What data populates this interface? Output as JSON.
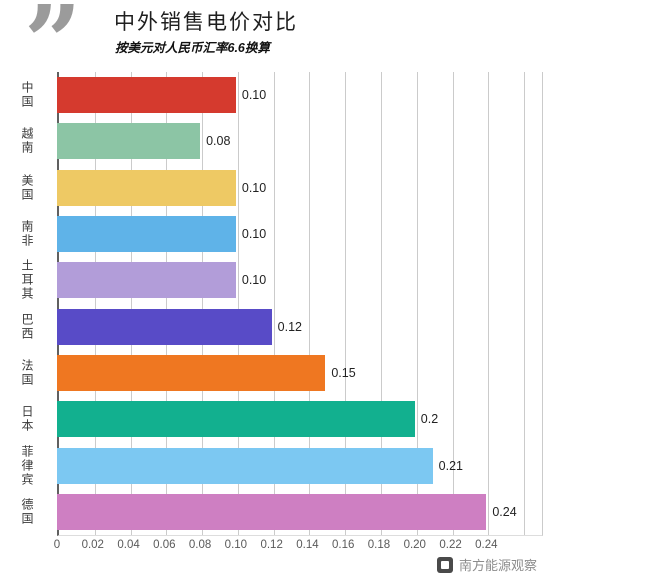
{
  "header": {
    "quote_glyph": "”",
    "title": "中外销售电价对比",
    "subtitle": "按美元对人民币汇率6.6换算"
  },
  "chart_data": {
    "type": "bar",
    "orientation": "horizontal",
    "title": "中外销售电价对比",
    "subtitle": "按美元对人民币汇率6.6换算",
    "categories": [
      "中国",
      "越南",
      "美国",
      "南非",
      "土耳其",
      "巴西",
      "法国",
      "日本",
      "菲律宾",
      "德国"
    ],
    "values": [
      0.1,
      0.08,
      0.1,
      0.1,
      0.1,
      0.12,
      0.15,
      0.2,
      0.21,
      0.24
    ],
    "value_labels": [
      "0.10",
      "0.08",
      "0.10",
      "0.10",
      "0.10",
      "0.12",
      "0.15",
      "0.2",
      "0.21",
      "0.24"
    ],
    "bar_colors": [
      "#d53a2e",
      "#8cc5a5",
      "#eec964",
      "#5fb3e8",
      "#b29dd9",
      "#584bc7",
      "#ef7721",
      "#12b08f",
      "#7cc8f2",
      "#ce7fc2"
    ],
    "xlabel": "",
    "ylabel": "",
    "xlim": [
      0,
      0.27
    ],
    "x_tick_step": 0.02,
    "x_ticks": [
      "0",
      "0.02",
      "0.04",
      "0.06",
      "0.08",
      "0.10",
      "0.12",
      "0.14",
      "0.16",
      "0.18",
      "0.20",
      "0.22",
      "0.24"
    ],
    "x_tick_values": [
      0,
      0.02,
      0.04,
      0.06,
      0.08,
      0.1,
      0.12,
      0.14,
      0.16,
      0.18,
      0.2,
      0.22,
      0.24
    ],
    "grid": true,
    "legend": false
  },
  "footer": {
    "brand": "南方能源观察"
  }
}
